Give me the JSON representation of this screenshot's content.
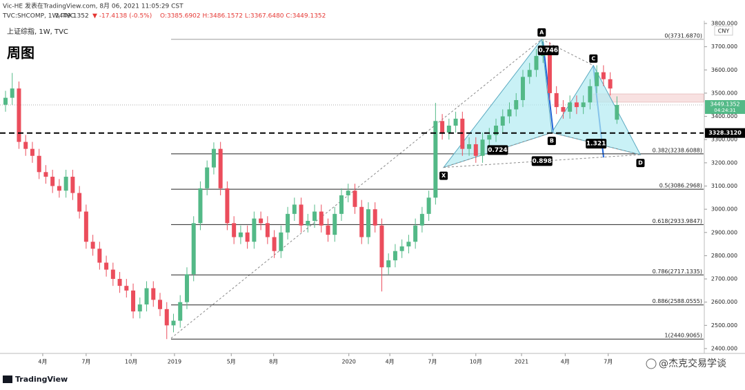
{
  "header": {
    "author": "Vic-HE 发表在TradingView.com, 8月 06, 2021 11:05:29 CST",
    "symbol": "TVC:SHCOMP, 1W, TVC",
    "price": "3449.1352",
    "change": "▼ -17.4138 (-0.5%)",
    "ohlc": "O:3385.6902 H:3486.1572 L:3367.6480 C:3449.1352"
  },
  "footer": {
    "brand": "TradingView",
    "watermark": "@杰克交易学谈"
  },
  "chart_data": {
    "type": "candlestick",
    "title": "上证综指, 1W, TVC",
    "subtitle": "周图",
    "currency": "CNY",
    "up_color": "#53b987",
    "down_color": "#eb4d5c",
    "xlim": [
      -0.82,
      103.9
    ],
    "ylim": [
      2400,
      3800
    ],
    "xticks": [
      {
        "value": 5.54,
        "label": "4月"
      },
      {
        "value": 12.0,
        "label": "7月"
      },
      {
        "value": 18.7,
        "label": "10月"
      },
      {
        "value": 25.15,
        "label": "2019"
      },
      {
        "value": 33.6,
        "label": "5月"
      },
      {
        "value": 39.9,
        "label": "8月"
      },
      {
        "value": 51.1,
        "label": "2020"
      },
      {
        "value": 57.2,
        "label": "4月"
      },
      {
        "value": 63.55,
        "label": "7月"
      },
      {
        "value": 70.0,
        "label": "10月"
      },
      {
        "value": 76.8,
        "label": "2021"
      },
      {
        "value": 83.3,
        "label": "4月"
      },
      {
        "value": 89.7,
        "label": "7月"
      }
    ],
    "yticks": [
      {
        "value": 3800,
        "label": "3800.000"
      },
      {
        "value": 3700,
        "label": "3700.000"
      },
      {
        "value": 3600,
        "label": "3600.000"
      },
      {
        "value": 3500,
        "label": "3500.000"
      },
      {
        "value": 3400,
        "label": "3400.000"
      },
      {
        "value": 3300,
        "label": "3300.000"
      },
      {
        "value": 3200,
        "label": "3200.000"
      },
      {
        "value": 3100,
        "label": "3100.000"
      },
      {
        "value": 3000,
        "label": "3000.000"
      },
      {
        "value": 2900,
        "label": "2900.000"
      },
      {
        "value": 2800,
        "label": "2800.000"
      },
      {
        "value": 2700,
        "label": "2700.000"
      },
      {
        "value": 2600,
        "label": "2600.000"
      },
      {
        "value": 2500,
        "label": "2500.000"
      },
      {
        "value": 2400,
        "label": "2400.000"
      }
    ],
    "open": [
      3450,
      3480,
      3520,
      3290,
      3260,
      3230,
      3160,
      3140,
      3100,
      3080,
      3140,
      3070,
      2990,
      2860,
      2830,
      2770,
      2740,
      2700,
      2670,
      2650,
      2560,
      2590,
      2660,
      2610,
      2570,
      2500,
      2520,
      2600,
      2720,
      2940,
      3090,
      3180,
      3260,
      3090,
      2940,
      2880,
      2900,
      2860,
      2960,
      2940,
      2880,
      2820,
      2900,
      2980,
      3020,
      2930,
      2950,
      2990,
      2930,
      2890,
      2980,
      3060,
      3080,
      3010,
      2880,
      3000,
      2930,
      2750,
      2780,
      2820,
      2840,
      2860,
      2930,
      2980,
      3050,
      3380,
      3330,
      3360,
      3390,
      3260,
      3280,
      3230,
      3300,
      3320,
      3360,
      3400,
      3430,
      3470,
      3570,
      3600,
      3660,
      3690,
      3500,
      3440,
      3420,
      3460,
      3440,
      3460,
      3530,
      3590,
      3560,
      3385.6902
    ],
    "high": [
      3510,
      3587,
      3550,
      3320,
      3290,
      3260,
      3190,
      3170,
      3130,
      3170,
      3170,
      3100,
      3020,
      2890,
      2860,
      2800,
      2770,
      2730,
      2700,
      2680,
      2620,
      2690,
      2690,
      2640,
      2600,
      2550,
      2630,
      2750,
      2970,
      3120,
      3210,
      3288,
      3290,
      3120,
      2970,
      2930,
      2930,
      2990,
      2990,
      2970,
      2910,
      2930,
      3010,
      3050,
      3050,
      2980,
      3020,
      3020,
      2960,
      3010,
      3090,
      3110,
      3110,
      3040,
      3030,
      3030,
      2960,
      2810,
      2850,
      2870,
      2890,
      2960,
      3010,
      3080,
      3458,
      3410,
      3390,
      3420,
      3420,
      3310,
      3310,
      3330,
      3350,
      3390,
      3430,
      3460,
      3500,
      3600,
      3630,
      3690,
      3731.687,
      3720,
      3530,
      3470,
      3490,
      3490,
      3490,
      3560,
      3620,
      3620,
      3590,
      3486.1572
    ],
    "low": [
      3420,
      3450,
      3260,
      3230,
      3200,
      3130,
      3110,
      3070,
      3050,
      3050,
      3040,
      2960,
      2830,
      2800,
      2740,
      2710,
      2670,
      2640,
      2620,
      2530,
      2530,
      2560,
      2580,
      2540,
      2440.9065,
      2470,
      2490,
      2570,
      2690,
      2910,
      3060,
      3150,
      3060,
      2910,
      2850,
      2850,
      2830,
      2830,
      2910,
      2850,
      2790,
      2790,
      2870,
      2950,
      2900,
      2900,
      2920,
      2900,
      2860,
      2860,
      2950,
      3030,
      2980,
      2850,
      2850,
      2900,
      2646,
      2720,
      2750,
      2790,
      2810,
      2830,
      2900,
      2950,
      3020,
      3300,
      3300,
      3330,
      3230,
      3230,
      3200,
      3200,
      3270,
      3290,
      3330,
      3370,
      3400,
      3440,
      3540,
      3570,
      3630,
      3470,
      3410,
      3390,
      3390,
      3410,
      3410,
      3430,
      3500,
      3530,
      3490,
      3367.648
    ],
    "close": [
      3480,
      3520,
      3290,
      3260,
      3230,
      3160,
      3140,
      3100,
      3080,
      3140,
      3070,
      2990,
      2860,
      2830,
      2770,
      2740,
      2700,
      2670,
      2650,
      2560,
      2590,
      2660,
      2610,
      2570,
      2500,
      2520,
      2600,
      2720,
      2940,
      3090,
      3180,
      3260,
      3090,
      2940,
      2880,
      2900,
      2860,
      2960,
      2940,
      2880,
      2820,
      2900,
      2980,
      3020,
      2930,
      2950,
      2990,
      2930,
      2890,
      2980,
      3060,
      3080,
      3010,
      2880,
      3000,
      2930,
      2750,
      2780,
      2820,
      2840,
      2860,
      2930,
      2980,
      3050,
      3380,
      3330,
      3360,
      3390,
      3260,
      3280,
      3230,
      3300,
      3320,
      3360,
      3400,
      3430,
      3470,
      3570,
      3600,
      3660,
      3690,
      3500,
      3440,
      3420,
      3460,
      3440,
      3460,
      3530,
      3590,
      3560,
      3520,
      3449.1352
    ],
    "last_price": {
      "value": 3449.1352,
      "label": "3449.1352",
      "countdown": "04:24:31"
    },
    "hline": {
      "value": 3328.312,
      "label": "3328.3120"
    },
    "fib": [
      {
        "value": 3731.687,
        "label": "0(3731.6870)"
      },
      {
        "value": 3238.6088,
        "label": "0.382(3238.6088)"
      },
      {
        "value": 3086.2968,
        "label": "0.5(3086.2968)"
      },
      {
        "value": 2933.9847,
        "label": "0.618(2933.9847)"
      },
      {
        "value": 2717.1335,
        "label": "0.786(2717.1335)"
      },
      {
        "value": 2588.0555,
        "label": "0.886(2588.0555)"
      },
      {
        "value": 2440.9065,
        "label": "1(2440.9065)"
      }
    ],
    "pattern": {
      "points": [
        {
          "name": "X",
          "x": 65.2,
          "y": 3180
        },
        {
          "name": "A",
          "x": 79.8,
          "y": 3731.687
        },
        {
          "name": "B",
          "x": 81.3,
          "y": 3330
        },
        {
          "name": "C",
          "x": 87.5,
          "y": 3619
        },
        {
          "name": "D",
          "x": 94.5,
          "y": 3235
        }
      ],
      "ratios": [
        "0.724",
        "0.746",
        "1.321",
        "0.898"
      ]
    }
  }
}
